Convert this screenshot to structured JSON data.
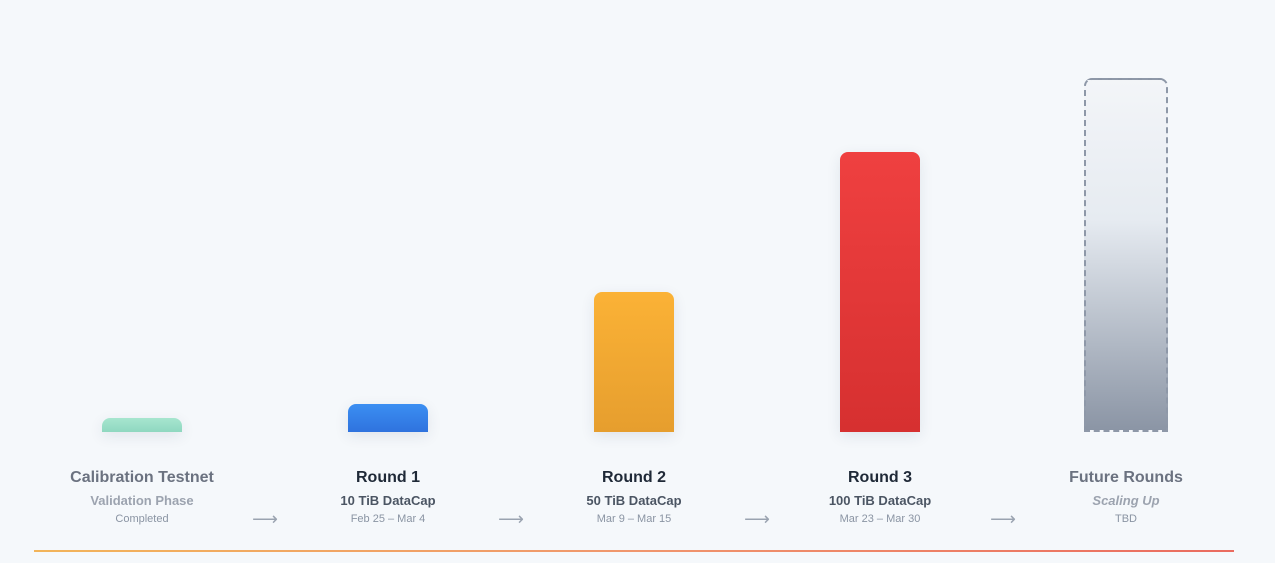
{
  "chart_data": {
    "type": "bar",
    "categories": [
      "Calibration Testnet",
      "Round 1",
      "Round 2",
      "Round 3",
      "Future Rounds"
    ],
    "subtitles": [
      "Validation Phase",
      "10 TiB DataCap",
      "50 TiB DataCap",
      "100 TiB DataCap",
      "Scaling Up"
    ],
    "dates": [
      "Completed",
      "Feb 25 – Mar 4",
      "Mar 9 – Mar 15",
      "Mar 23 – Mar 30",
      "TBD"
    ],
    "values": [
      1,
      10,
      50,
      100,
      null
    ],
    "colors": [
      [
        "#a7e6cf",
        "#8fd8c0"
      ],
      [
        "#3b8ff2",
        "#2f73de"
      ],
      [
        "#fbb236",
        "#e69e2e"
      ],
      [
        "#ef4040",
        "#d63030"
      ],
      [
        "#f3f5f8",
        "#8b95a5"
      ]
    ],
    "arrow_glyph": "⟶"
  }
}
